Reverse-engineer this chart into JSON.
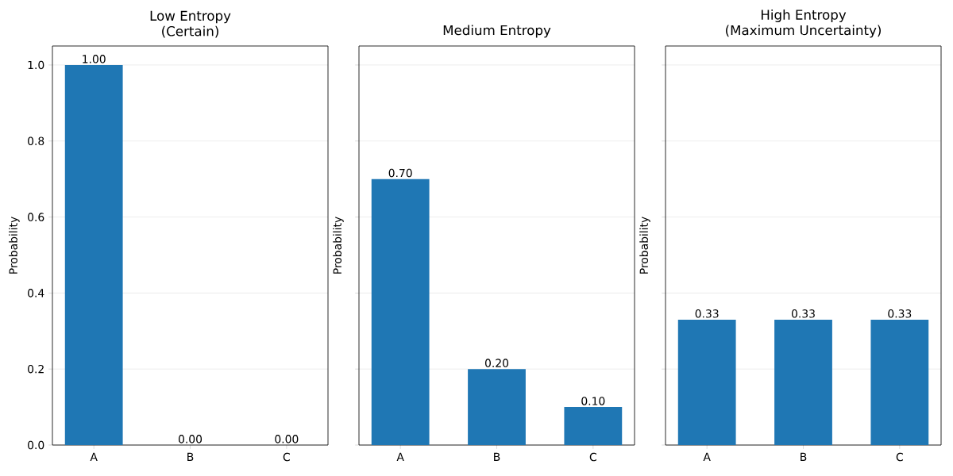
{
  "chart_data": [
    {
      "type": "bar",
      "title": "Low Entropy",
      "subtitle": "(Certain)",
      "ylabel": "Probability",
      "categories": [
        "A",
        "B",
        "C"
      ],
      "values": [
        1.0,
        0.0,
        0.0
      ],
      "value_labels": [
        "1.00",
        "0.00",
        "0.00"
      ],
      "color": "#1f77b4",
      "ylim": [
        0,
        1.05
      ],
      "yticks": [
        {
          "value": 0,
          "label": "0.0"
        },
        {
          "value": 0.2,
          "label": "0.2"
        },
        {
          "value": 0.4,
          "label": "0.4"
        },
        {
          "value": 0.6,
          "label": "0.6"
        },
        {
          "value": 0.8,
          "label": "0.8"
        },
        {
          "value": 1.0,
          "label": "1.0"
        }
      ],
      "grid": "y"
    },
    {
      "type": "bar",
      "title": "Medium Entropy",
      "ylabel": "Probability",
      "categories": [
        "A",
        "B",
        "C"
      ],
      "values": [
        0.7,
        0.2,
        0.1
      ],
      "value_labels": [
        "0.70",
        "0.20",
        "0.10"
      ],
      "color": "#1f77b4",
      "ylim": [
        0,
        1.05
      ],
      "yticks": [
        {
          "value": 0,
          "label": null
        },
        {
          "value": 0.2,
          "label": null
        },
        {
          "value": 0.4,
          "label": null
        },
        {
          "value": 0.6,
          "label": null
        },
        {
          "value": 0.8,
          "label": null
        },
        {
          "value": 1.0,
          "label": null
        }
      ],
      "grid": "y",
      "tick_labels": "x"
    },
    {
      "type": "bar",
      "title": "High Entropy",
      "subtitle": "(Maximum Uncertainty)",
      "ylabel": "Probability",
      "categories": [
        "A",
        "B",
        "C"
      ],
      "values": [
        0.33,
        0.33,
        0.33
      ],
      "value_labels": [
        "0.33",
        "0.33",
        "0.33"
      ],
      "color": "#1f77b4",
      "ylim": [
        0,
        1.05
      ],
      "yticks": [
        {
          "value": 0,
          "label": null
        },
        {
          "value": 0.2,
          "label": null
        },
        {
          "value": 0.4,
          "label": null
        },
        {
          "value": 0.6,
          "label": null
        },
        {
          "value": 0.8,
          "label": null
        },
        {
          "value": 1.0,
          "label": null
        }
      ],
      "grid": "y",
      "tick_labels": "x"
    }
  ]
}
